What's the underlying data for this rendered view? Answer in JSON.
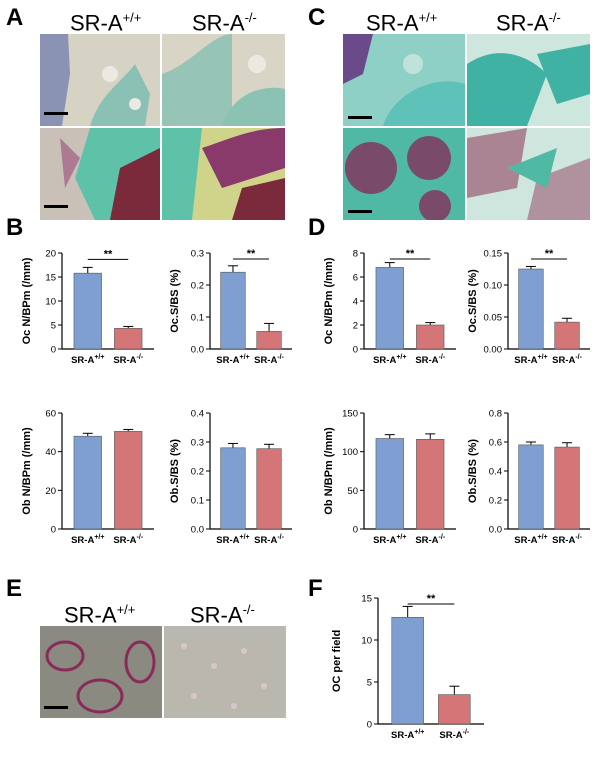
{
  "panels": {
    "A": "A",
    "B": "B",
    "C": "C",
    "D": "D",
    "E": "E",
    "F": "F"
  },
  "groups": {
    "wt_base": "SR-A",
    "wt_sup": "+/+",
    "ko_base": "SR-A",
    "ko_sup": "-/-"
  },
  "colors": {
    "wt_bar": "#7f9fd2",
    "ko_bar": "#d47677",
    "histo_teal": "#4fb9a4",
    "histo_purple": "#6b4a8c",
    "histo_marrow": "#7a2a3a"
  },
  "chart_data": [
    {
      "id": "B1",
      "type": "bar",
      "ylabel": "Oc N/BPm (/mm)",
      "ylim": [
        0,
        20
      ],
      "yticks": [
        "0",
        "5",
        "10",
        "15",
        "20"
      ],
      "values": [
        15.8,
        4.3
      ],
      "errors": [
        1.2,
        0.4
      ],
      "significance": "**"
    },
    {
      "id": "B2",
      "type": "bar",
      "ylabel": "Oc.S/BS (%)",
      "ylim": [
        0,
        0.3
      ],
      "yticks": [
        "0.0",
        "0.1",
        "0.2",
        "0.3"
      ],
      "values": [
        0.24,
        0.055
      ],
      "errors": [
        0.02,
        0.025
      ],
      "significance": "**"
    },
    {
      "id": "B3",
      "type": "bar",
      "ylabel": "Ob N/BPm (/mm)",
      "ylim": [
        0,
        60
      ],
      "yticks": [
        "0",
        "20",
        "40",
        "60"
      ],
      "values": [
        48,
        50.5
      ],
      "errors": [
        1.5,
        1.0
      ],
      "significance": ""
    },
    {
      "id": "B4",
      "type": "bar",
      "ylabel": "Ob.S/BS (%)",
      "ylim": [
        0,
        0.4
      ],
      "yticks": [
        "0.0",
        "0.1",
        "0.2",
        "0.3",
        "0.4"
      ],
      "values": [
        0.28,
        0.277
      ],
      "errors": [
        0.015,
        0.015
      ],
      "significance": ""
    },
    {
      "id": "D1",
      "type": "bar",
      "ylabel": "Oc N/BPm (/mm)",
      "ylim": [
        0,
        8
      ],
      "yticks": [
        "0",
        "2",
        "4",
        "6",
        "8"
      ],
      "values": [
        6.8,
        2.0
      ],
      "errors": [
        0.4,
        0.2
      ],
      "significance": "**"
    },
    {
      "id": "D2",
      "type": "bar",
      "ylabel": "Oc.S/BS (%)",
      "ylim": [
        0,
        0.15
      ],
      "yticks": [
        "0.00",
        "0.05",
        "0.10",
        "0.15"
      ],
      "values": [
        0.125,
        0.042
      ],
      "errors": [
        0.004,
        0.006
      ],
      "significance": "**"
    },
    {
      "id": "D3",
      "type": "bar",
      "ylabel": "Ob N/BPm (/mm)",
      "ylim": [
        0,
        150
      ],
      "yticks": [
        "0",
        "50",
        "100",
        "150"
      ],
      "values": [
        117,
        116
      ],
      "errors": [
        5,
        7
      ],
      "significance": ""
    },
    {
      "id": "D4",
      "type": "bar",
      "ylabel": "Ob.S/BS (%)",
      "ylim": [
        0,
        0.8
      ],
      "yticks": [
        "0.0",
        "0.2",
        "0.4",
        "0.6",
        "0.8"
      ],
      "values": [
        0.58,
        0.565
      ],
      "errors": [
        0.02,
        0.03
      ],
      "significance": ""
    },
    {
      "id": "F",
      "type": "bar",
      "ylabel": "OC per field",
      "ylim": [
        0,
        15
      ],
      "yticks": [
        "0",
        "5",
        "10",
        "15"
      ],
      "values": [
        12.7,
        3.5
      ],
      "errors": [
        1.3,
        1.0
      ],
      "significance": "**"
    }
  ]
}
